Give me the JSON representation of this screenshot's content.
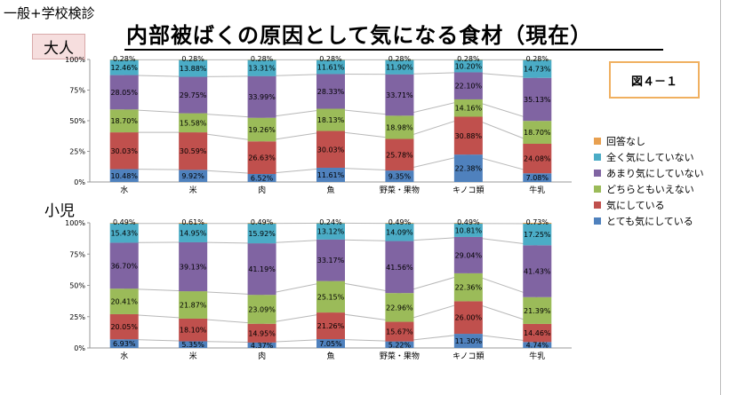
{
  "header": {
    "note": "一般+学校検診",
    "title": "内部被ばくの原因として気になる食材（現在）",
    "figure_label": "図４－１"
  },
  "colors": {
    "回答なし": "#e8a050",
    "全く気にしていない": "#4bacc6",
    "あまり気にしていない": "#8064a2",
    "どちらともいえない": "#9bbb59",
    "気にしている": "#c0504d",
    "とても気にしている": "#4f81bd"
  },
  "chart_data": [
    {
      "type": "bar",
      "stacked": true,
      "group_label": "大人",
      "categories": [
        "水",
        "米",
        "肉",
        "魚",
        "野菜・果物",
        "キノコ類",
        "牛乳"
      ],
      "ylim": [
        0,
        100
      ],
      "yticks": [
        "0%",
        "25%",
        "50%",
        "75%",
        "100%"
      ],
      "series": [
        {
          "name": "とても気にしている",
          "values": [
            10.48,
            9.92,
            6.52,
            11.61,
            9.35,
            22.38,
            7.08
          ],
          "labels": [
            "10.48%",
            "9.92%",
            "6.52%",
            "11.61%",
            "9.35%",
            "22.38%",
            "7.08%"
          ]
        },
        {
          "name": "気にしている",
          "values": [
            30.03,
            30.59,
            26.63,
            30.03,
            25.78,
            30.88,
            24.08
          ],
          "labels": [
            "30.03%",
            "30.59%",
            "26.63%",
            "30.03%",
            "25.78%",
            "30.88%",
            "24.08%"
          ]
        },
        {
          "name": "どちらともいえない",
          "values": [
            18.7,
            15.58,
            19.26,
            18.13,
            18.98,
            14.16,
            18.7
          ],
          "labels": [
            "18.70%",
            "15.58%",
            "19.26%",
            "18.13%",
            "18.98%",
            "14.16%",
            "18.70%"
          ]
        },
        {
          "name": "あまり気にしていない",
          "values": [
            28.05,
            29.75,
            33.99,
            28.33,
            33.71,
            22.1,
            35.13
          ],
          "labels": [
            "28.05%",
            "29.75%",
            "33.99%",
            "28.33%",
            "33.71%",
            "22.10%",
            "35.13%"
          ]
        },
        {
          "name": "全く気にしていない",
          "values": [
            12.46,
            13.88,
            13.31,
            11.61,
            11.9,
            10.2,
            14.73
          ],
          "labels": [
            "12.46%",
            "13.88%",
            "13.31%",
            "11.61%",
            "11.90%",
            "10.20%",
            "14.73%"
          ]
        },
        {
          "name": "回答なし",
          "values": [
            0.28,
            0.28,
            0.28,
            0.28,
            0.28,
            0.28,
            0.28
          ],
          "labels": [
            "0.28%",
            "0.28%",
            "0.28%",
            "0.28%",
            "0.28%",
            "0.28%",
            "0.28%"
          ]
        }
      ]
    },
    {
      "type": "bar",
      "stacked": true,
      "group_label": "小児",
      "categories": [
        "水",
        "米",
        "肉",
        "魚",
        "野菜・果物",
        "キノコ類",
        "牛乳"
      ],
      "ylim": [
        0,
        100
      ],
      "yticks": [
        "0%",
        "25%",
        "50%",
        "75%",
        "100%"
      ],
      "series": [
        {
          "name": "とても気にしている",
          "values": [
            6.93,
            5.35,
            4.37,
            7.05,
            5.22,
            11.3,
            4.74
          ],
          "labels": [
            "6.93%",
            "5.35%",
            "4.37%",
            "7.05%",
            "5.22%",
            "11.30%",
            "4.74%"
          ]
        },
        {
          "name": "気にしている",
          "values": [
            20.05,
            18.1,
            14.95,
            21.26,
            15.67,
            26.0,
            14.46
          ],
          "labels": [
            "20.05%",
            "18.10%",
            "14.95%",
            "21.26%",
            "15.67%",
            "26.00%",
            "14.46%"
          ]
        },
        {
          "name": "どちらともいえない",
          "values": [
            20.41,
            21.87,
            23.09,
            25.15,
            22.96,
            22.36,
            21.39
          ],
          "labels": [
            "20.41%",
            "21.87%",
            "23.09%",
            "25.15%",
            "22.96%",
            "22.36%",
            "21.39%"
          ]
        },
        {
          "name": "あまり気にしていない",
          "values": [
            36.7,
            39.13,
            41.19,
            33.17,
            41.56,
            29.04,
            41.43
          ],
          "labels": [
            "36.70%",
            "39.13%",
            "41.19%",
            "33.17%",
            "41.56%",
            "29.04%",
            "41.43%"
          ]
        },
        {
          "name": "全く気にしていない",
          "values": [
            15.43,
            14.95,
            15.92,
            13.12,
            14.09,
            10.81,
            17.25
          ],
          "labels": [
            "15.43%",
            "14.95%",
            "15.92%",
            "13.12%",
            "14.09%",
            "10.81%",
            "17.25%"
          ]
        },
        {
          "name": "回答なし",
          "values": [
            0.49,
            0.61,
            0.49,
            0.24,
            0.49,
            0.49,
            0.73
          ],
          "labels": [
            "0.49%",
            "0.61%",
            "0.49%",
            "0.24%",
            "0.49%",
            "0.49%",
            "0.73%"
          ]
        }
      ]
    }
  ],
  "legend": [
    {
      "name": "回答なし"
    },
    {
      "name": "全く気にしていない"
    },
    {
      "name": "あまり気にしていない"
    },
    {
      "name": "どちらともいえない"
    },
    {
      "name": "気にしている"
    },
    {
      "name": "とても気にしている"
    }
  ]
}
